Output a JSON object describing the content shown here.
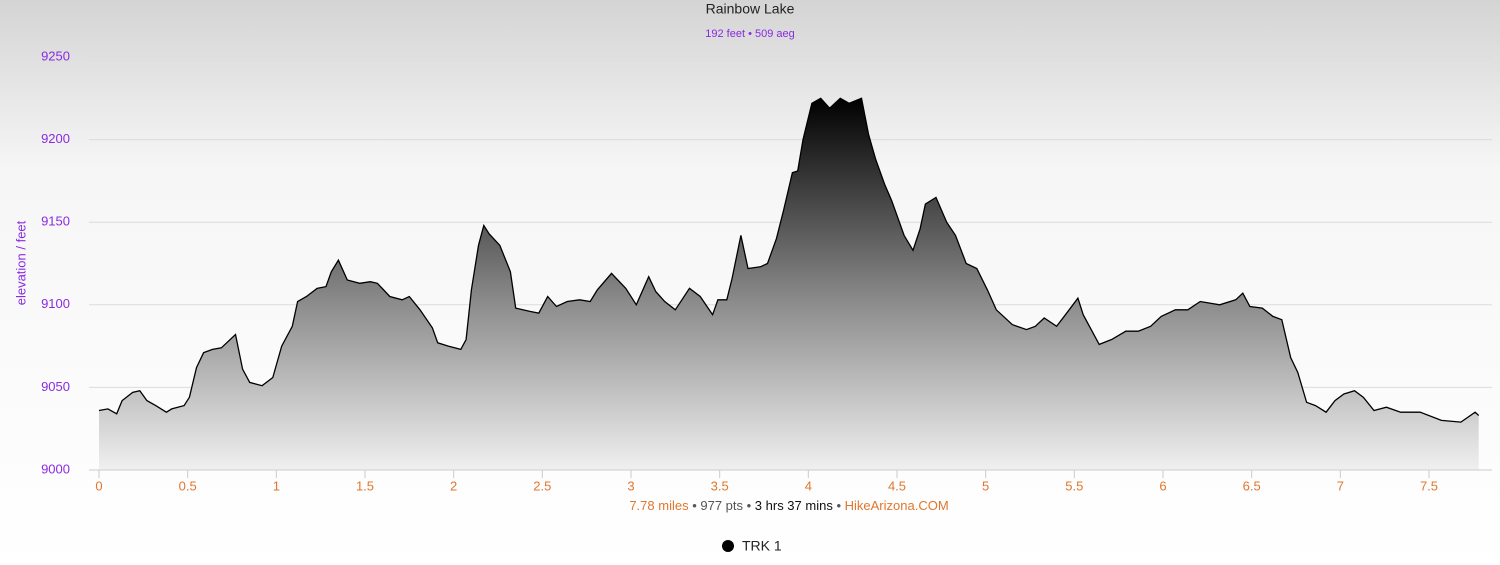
{
  "chart_data": {
    "type": "area",
    "title": "Rainbow Lake",
    "subtitle": "192 feet • 509 aeg",
    "y_label": "elevation / feet",
    "footer_parts": [
      "7.78 miles",
      "977 pts",
      "3 hrs 37 mins",
      "HikeArizona.COM"
    ],
    "footer_separator": "•",
    "xlim": [
      0,
      7.78
    ],
    "ylim": [
      9000,
      9250
    ],
    "xticks": [
      0,
      0.5,
      1,
      1.5,
      2,
      2.5,
      3,
      3.5,
      4,
      4.5,
      5,
      5.5,
      6,
      6.5,
      7,
      7.5
    ],
    "yticks": [
      9000,
      9050,
      9100,
      9150,
      9200,
      9250
    ],
    "grid": true,
    "x": [
      0,
      0.05,
      0.1,
      0.13,
      0.19,
      0.23,
      0.27,
      0.32,
      0.38,
      0.41,
      0.48,
      0.51,
      0.55,
      0.59,
      0.64,
      0.69,
      0.77,
      0.81,
      0.85,
      0.92,
      0.98,
      1.03,
      1.09,
      1.12,
      1.17,
      1.23,
      1.28,
      1.31,
      1.35,
      1.4,
      1.47,
      1.53,
      1.57,
      1.64,
      1.71,
      1.75,
      1.81,
      1.88,
      1.91,
      1.97,
      2.04,
      2.07,
      2.1,
      2.14,
      2.17,
      2.2,
      2.26,
      2.32,
      2.35,
      2.43,
      2.48,
      2.53,
      2.58,
      2.64,
      2.71,
      2.77,
      2.81,
      2.89,
      2.97,
      3.03,
      3.1,
      3.14,
      3.19,
      3.25,
      3.33,
      3.39,
      3.46,
      3.49,
      3.54,
      3.57,
      3.62,
      3.66,
      3.73,
      3.77,
      3.82,
      3.86,
      3.91,
      3.94,
      3.97,
      4.02,
      4.07,
      4.12,
      4.18,
      4.23,
      4.3,
      4.34,
      4.38,
      4.43,
      4.47,
      4.54,
      4.59,
      4.63,
      4.66,
      4.72,
      4.78,
      4.83,
      4.89,
      4.95,
      5.01,
      5.06,
      5.15,
      5.23,
      5.28,
      5.33,
      5.4,
      5.45,
      5.52,
      5.55,
      5.64,
      5.71,
      5.79,
      5.86,
      5.93,
      5.99,
      6.07,
      6.14,
      6.21,
      6.32,
      6.41,
      6.45,
      6.49,
      6.56,
      6.62,
      6.67,
      6.72,
      6.76,
      6.81,
      6.86,
      6.92,
      6.97,
      7.02,
      7.08,
      7.13,
      7.19,
      7.26,
      7.34,
      7.45,
      7.57,
      7.68,
      7.76,
      7.78
    ],
    "series": [
      {
        "name": "TRK 1",
        "color": "#000000",
        "values": [
          9036,
          9037,
          9034,
          9042,
          9047,
          9048,
          9042,
          9039,
          9035,
          9037,
          9039,
          9044,
          9062,
          9071,
          9073,
          9074,
          9082,
          9061,
          9053,
          9051,
          9056,
          9075,
          9087,
          9102,
          9105,
          9110,
          9111,
          9120,
          9127,
          9115,
          9113,
          9114,
          9113,
          9105,
          9103,
          9105,
          9097,
          9086,
          9077,
          9075,
          9073,
          9079,
          9109,
          9136,
          9148,
          9143,
          9136,
          9120,
          9098,
          9096,
          9095,
          9105,
          9099,
          9102,
          9103,
          9102,
          9109,
          9119,
          9110,
          9100,
          9117,
          9108,
          9102,
          9097,
          9110,
          9105,
          9094,
          9103,
          9103,
          9116,
          9142,
          9122,
          9123,
          9125,
          9140,
          9157,
          9180,
          9181,
          9200,
          9222,
          9225,
          9219,
          9225,
          9222,
          9225,
          9203,
          9188,
          9173,
          9163,
          9142,
          9133,
          9146,
          9161,
          9165,
          9150,
          9142,
          9125,
          9122,
          9109,
          9097,
          9088,
          9085,
          9087,
          9092,
          9087,
          9094,
          9104,
          9094,
          9076,
          9079,
          9084,
          9084,
          9087,
          9093,
          9097,
          9097,
          9102,
          9100,
          9103,
          9107,
          9099,
          9098,
          9093,
          9091,
          9068,
          9059,
          9041,
          9039,
          9035,
          9042,
          9046,
          9048,
          9044,
          9036,
          9038,
          9035,
          9035,
          9030,
          9029,
          9035,
          9033
        ]
      }
    ]
  }
}
